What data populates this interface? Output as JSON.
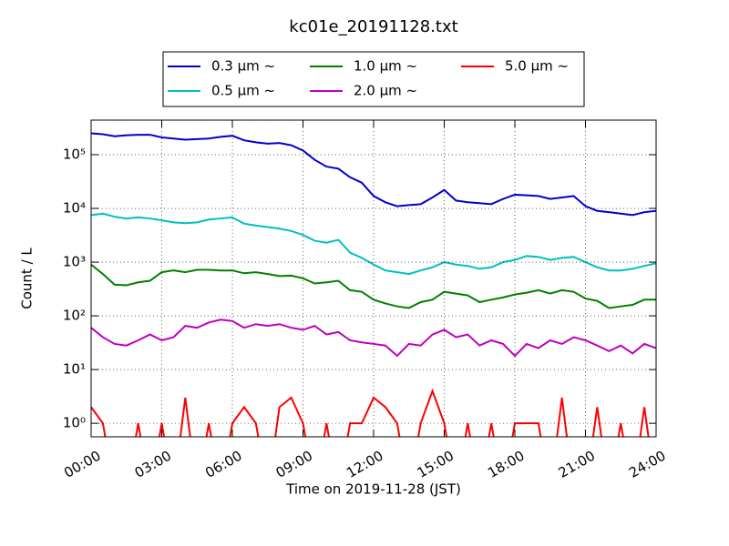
{
  "chart_data": {
    "type": "line",
    "title": "kc01e_20191128.txt",
    "xlabel": "Time on 2019-11-28 (JST)",
    "ylabel": "Count / L",
    "log_y": true,
    "grid": true,
    "legend": "top",
    "x": [
      0,
      0.5,
      1,
      1.5,
      2,
      2.5,
      3,
      3.5,
      4,
      4.5,
      5,
      5.5,
      6,
      6.5,
      7,
      7.5,
      8,
      8.5,
      9,
      9.5,
      10,
      10.5,
      11,
      11.5,
      12,
      12.5,
      13,
      13.5,
      14,
      14.5,
      15,
      15.5,
      16,
      16.5,
      17,
      17.5,
      18,
      18.5,
      19,
      19.5,
      20,
      20.5,
      21,
      21.5,
      22,
      22.5,
      23,
      23.5,
      24
    ],
    "xlim": [
      0,
      24
    ],
    "xticks": [
      {
        "value": 0,
        "label": "00:00"
      },
      {
        "value": 3,
        "label": "03:00"
      },
      {
        "value": 6,
        "label": "06:00"
      },
      {
        "value": 9,
        "label": "09:00"
      },
      {
        "value": 12,
        "label": "12:00"
      },
      {
        "value": 15,
        "label": "15:00"
      },
      {
        "value": 18,
        "label": "18:00"
      },
      {
        "value": 21,
        "label": "21:00"
      },
      {
        "value": 24,
        "label": "24:00"
      }
    ],
    "ylim": [
      0.56,
      440000
    ],
    "yticks": [
      {
        "value": 1,
        "label": "10⁰"
      },
      {
        "value": 10,
        "label": "10¹"
      },
      {
        "value": 100,
        "label": "10²"
      },
      {
        "value": 1000,
        "label": "10³"
      },
      {
        "value": 10000,
        "label": "10⁴"
      },
      {
        "value": 100000,
        "label": "10⁵"
      }
    ],
    "series": [
      {
        "name": "0.3 μm ~",
        "color": "#0000cc",
        "values": [
          250000,
          240000,
          220000,
          230000,
          235000,
          235000,
          210000,
          200000,
          190000,
          195000,
          200000,
          215000,
          225000,
          185000,
          170000,
          160000,
          165000,
          150000,
          120000,
          80000,
          60000,
          55000,
          38000,
          30000,
          17000,
          13000,
          11000,
          11500,
          12000,
          16000,
          22000,
          14000,
          13000,
          12500,
          12000,
          15000,
          18000,
          17500,
          17000,
          15000,
          16000,
          17000,
          11000,
          9000,
          8500,
          8000,
          7500,
          8500,
          9000
        ]
      },
      {
        "name": "0.5 μm ~",
        "color": "#00bfbf",
        "values": [
          7500,
          8000,
          7000,
          6500,
          6800,
          6500,
          6000,
          5500,
          5300,
          5500,
          6200,
          6500,
          6800,
          5200,
          4800,
          4500,
          4200,
          3800,
          3200,
          2500,
          2300,
          2600,
          1500,
          1200,
          900,
          700,
          650,
          600,
          700,
          800,
          1000,
          900,
          850,
          750,
          800,
          1000,
          1100,
          1300,
          1250,
          1100,
          1200,
          1250,
          1000,
          800,
          700,
          700,
          750,
          850,
          950
        ]
      },
      {
        "name": "1.0 μm ~",
        "color": "#008000",
        "values": [
          900,
          600,
          380,
          370,
          420,
          450,
          650,
          700,
          650,
          720,
          720,
          700,
          700,
          620,
          650,
          600,
          550,
          560,
          500,
          400,
          420,
          450,
          300,
          280,
          200,
          170,
          150,
          140,
          180,
          200,
          280,
          260,
          240,
          180,
          200,
          220,
          250,
          270,
          300,
          260,
          300,
          280,
          210,
          190,
          140,
          150,
          160,
          200,
          200
        ]
      },
      {
        "name": "2.0 μm ~",
        "color": "#bf00bf",
        "values": [
          60,
          40,
          30,
          28,
          35,
          45,
          35,
          40,
          65,
          60,
          75,
          85,
          80,
          60,
          70,
          65,
          70,
          60,
          55,
          65,
          45,
          50,
          35,
          32,
          30,
          28,
          18,
          30,
          28,
          45,
          55,
          40,
          45,
          28,
          35,
          30,
          18,
          30,
          25,
          35,
          30,
          40,
          35,
          28,
          22,
          28,
          20,
          30,
          25
        ]
      },
      {
        "name": "5.0 μm ~",
        "color": "#ff0000",
        "values": [
          2,
          1,
          0,
          0,
          1,
          0,
          1,
          0,
          3,
          0,
          1,
          0,
          1,
          2,
          1,
          0,
          2,
          3,
          1,
          0,
          1,
          0,
          1,
          1,
          3,
          2,
          1,
          0,
          1,
          4,
          1,
          0,
          1,
          0,
          1,
          0,
          1,
          1,
          1,
          0,
          3,
          0,
          0,
          2,
          0,
          1,
          0,
          2,
          0
        ]
      }
    ]
  }
}
